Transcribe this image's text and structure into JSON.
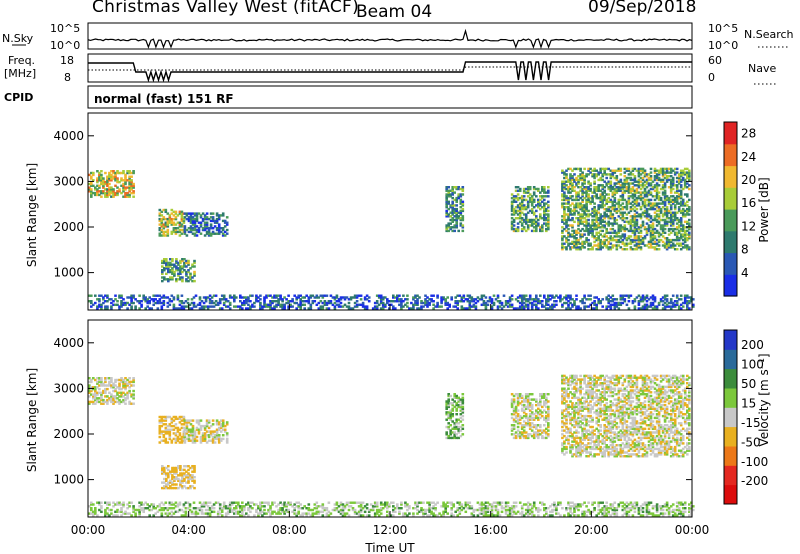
{
  "header": {
    "title": "Christmas Valley West (fitACF)",
    "beam": "Beam 04",
    "date": "09/Sep/2018"
  },
  "status_panels": {
    "nsky_label": "N.Sky",
    "nsky_ticks": [
      "10^5",
      "10^0"
    ],
    "nsearch_label": "N.Search",
    "nsearch_ticks": [
      "10^5",
      "10^0"
    ],
    "freq_label_line1": "Freq.",
    "freq_label_line2": "[MHz]",
    "freq_ticks": [
      "18",
      "8"
    ],
    "nave_label": "Nave",
    "nave_ticks": [
      "60",
      "0"
    ],
    "cpid_label": "CPID",
    "cpid_text": "normal (fast) 151 RF"
  },
  "chart_data": [
    {
      "type": "heatmap",
      "name": "power",
      "ylabel": "Slant Range [km]",
      "xlabel": "",
      "x_ticks": [
        "00:00",
        "04:00",
        "08:00",
        "12:00",
        "16:00",
        "20:00",
        "00:00"
      ],
      "y_ticks": [
        "1000",
        "2000",
        "3000",
        "4000"
      ],
      "xlim": [
        0,
        24
      ],
      "ylim": [
        180,
        4500
      ],
      "colorbar_label": "Power [dB]",
      "colorbar_ticks": [
        "4",
        "8",
        "12",
        "16",
        "20",
        "24",
        "28"
      ],
      "colorbar_range": [
        0,
        30
      ],
      "colors": [
        "#1a2ee6",
        "#2a58b4",
        "#2e7a6e",
        "#4a9a5a",
        "#a8cc38",
        "#f0b830",
        "#ec6c24",
        "#e02424"
      ],
      "echo_regions": [
        {
          "t": [
            0.0,
            1.8
          ],
          "r": [
            2650,
            3250
          ],
          "p": 18
        },
        {
          "t": [
            2.8,
            3.8
          ],
          "r": [
            1800,
            2400
          ],
          "p": 17
        },
        {
          "t": [
            2.9,
            4.2
          ],
          "r": [
            800,
            1300
          ],
          "p": 12
        },
        {
          "t": [
            3.8,
            5.5
          ],
          "r": [
            1800,
            2300
          ],
          "p": 8
        },
        {
          "t": [
            14.2,
            14.9
          ],
          "r": [
            1900,
            2900
          ],
          "p": 10
        },
        {
          "t": [
            16.8,
            18.3
          ],
          "r": [
            1900,
            2900
          ],
          "p": 12
        },
        {
          "t": [
            18.8,
            23.9
          ],
          "r": [
            1500,
            3300
          ],
          "p": 13
        },
        {
          "t": [
            0.0,
            24.0
          ],
          "r": [
            200,
            520
          ],
          "p": 6
        }
      ]
    },
    {
      "type": "heatmap",
      "name": "velocity",
      "ylabel": "Slant Range [km]",
      "xlabel": "Time UT",
      "x_ticks": [
        "00:00",
        "04:00",
        "08:00",
        "12:00",
        "16:00",
        "20:00",
        "00:00"
      ],
      "y_ticks": [
        "1000",
        "2000",
        "3000",
        "4000"
      ],
      "xlim": [
        0,
        24
      ],
      "ylim": [
        180,
        4500
      ],
      "colorbar_label": "Velocity [m s⁻¹]",
      "colorbar_ticks": [
        "200",
        "100",
        "50",
        "15",
        "-15",
        "-50",
        "-100",
        "-200"
      ],
      "colors": [
        "#2438c8",
        "#2a6a9a",
        "#3c8c3c",
        "#7cc83c",
        "#c8c8c8",
        "#e8b020",
        "#ec7818",
        "#e42820",
        "#dc0c0c"
      ],
      "echo_regions": [
        {
          "t": [
            0.0,
            1.8
          ],
          "r": [
            2650,
            3250
          ],
          "v": 0
        },
        {
          "t": [
            2.8,
            3.8
          ],
          "r": [
            1800,
            2400
          ],
          "v": -30
        },
        {
          "t": [
            2.9,
            4.2
          ],
          "r": [
            800,
            1300
          ],
          "v": -20
        },
        {
          "t": [
            3.8,
            5.5
          ],
          "r": [
            1800,
            2300
          ],
          "v": 0
        },
        {
          "t": [
            14.2,
            14.9
          ],
          "r": [
            1900,
            2900
          ],
          "v": 30
        },
        {
          "t": [
            16.8,
            18.3
          ],
          "r": [
            1900,
            2900
          ],
          "v": 0
        },
        {
          "t": [
            18.8,
            23.9
          ],
          "r": [
            1500,
            3300
          ],
          "v": 0
        },
        {
          "t": [
            0.0,
            24.0
          ],
          "r": [
            200,
            520
          ],
          "v": 20
        }
      ]
    }
  ]
}
